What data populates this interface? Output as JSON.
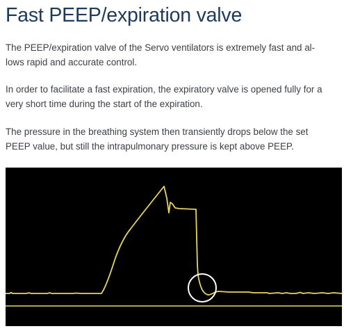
{
  "article": {
    "title": "Fast PEEP/expiration valve",
    "paragraphs": [
      {
        "lines": [
          "The PEEP/expiration valve of the Servo ventilators is extremely fast and al-",
          "lows rapid and accurate control."
        ]
      },
      {
        "lines": [
          "In order to facilitate a fast expiration, the expiratory valve is opened fully for a",
          "very short time during the start of the expiration."
        ]
      },
      {
        "lines": [
          "The pressure in the breathing system then transiently drops below the set",
          "PEEP value, but still the intrapulmonary pressure is kept above PEEP."
        ]
      }
    ]
  },
  "figure": {
    "background_color": "#000000",
    "waveform_color": "#e8d65a",
    "baseline_color": "#e8d65a",
    "highlight_circle_color": "#ffffff",
    "highlight_icon": "circle-highlight-icon"
  }
}
